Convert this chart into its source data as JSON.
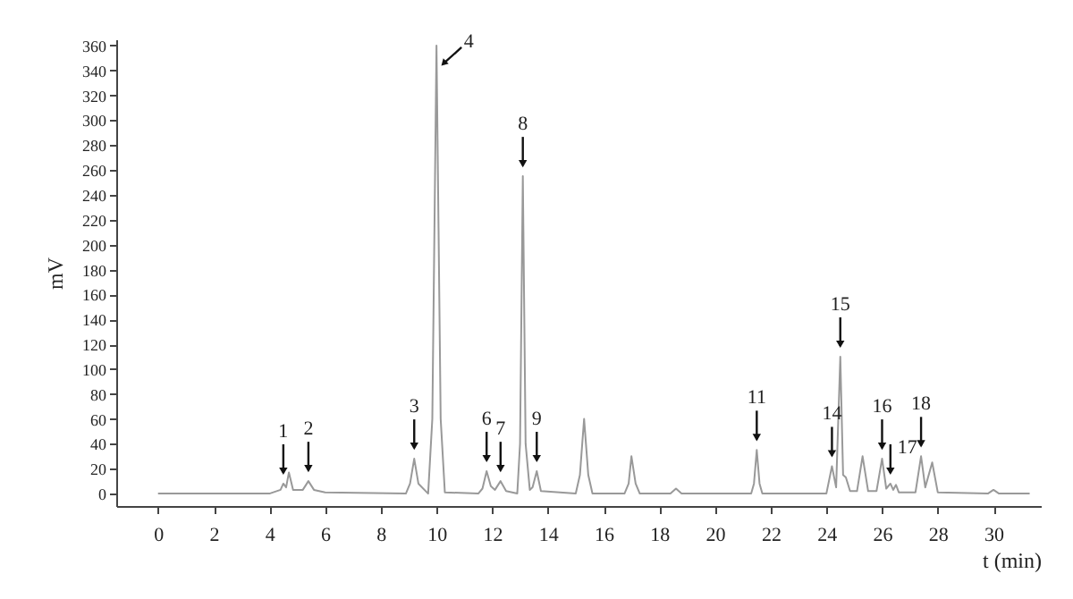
{
  "chart_data": {
    "type": "line",
    "xlabel": "t (min)",
    "ylabel": "mV",
    "x": [
      0,
      4.0,
      4.4,
      4.5,
      4.6,
      4.7,
      4.85,
      5.2,
      5.4,
      5.6,
      6,
      8.9,
      9.05,
      9.2,
      9.35,
      9.7,
      9.85,
      10.0,
      10.15,
      10.3,
      11.5,
      11.65,
      11.8,
      11.95,
      12.1,
      12.3,
      12.5,
      12.9,
      13.0,
      13.1,
      13.2,
      13.35,
      13.45,
      13.6,
      13.75,
      15.0,
      15.15,
      15.3,
      15.45,
      15.6,
      16.75,
      16.9,
      17.0,
      17.15,
      17.3,
      18.4,
      18.6,
      18.8,
      21.3,
      21.4,
      21.5,
      21.6,
      21.7,
      24.0,
      24.2,
      24.35,
      24.5,
      24.6,
      24.7,
      24.85,
      25.1,
      25.3,
      25.5,
      25.8,
      26.0,
      26.15,
      26.3,
      26.4,
      26.5,
      26.6,
      27.2,
      27.4,
      27.55,
      27.8,
      28.0,
      29.8,
      30.0,
      30.2,
      31.3
    ],
    "series": [
      {
        "color": "#999999",
        "values": [
          0,
          0,
          3,
          8,
          5,
          17,
          3,
          3,
          10,
          3,
          1,
          0,
          8,
          28,
          8,
          0,
          60,
          360,
          60,
          1,
          0,
          4,
          18,
          6,
          3,
          10,
          2,
          0,
          40,
          255,
          40,
          3,
          5,
          18,
          2,
          0,
          15,
          60,
          15,
          0,
          0,
          8,
          30,
          8,
          0,
          0,
          4,
          0,
          0,
          8,
          35,
          8,
          0,
          0,
          22,
          5,
          110,
          15,
          13,
          2,
          2,
          30,
          2,
          2,
          28,
          4,
          8,
          3,
          7,
          1,
          1,
          30,
          5,
          25,
          1,
          0,
          3,
          0,
          0
        ]
      }
    ],
    "xlim": [
      -1.5,
      31.7
    ],
    "xticks": [
      0,
      2,
      4,
      6,
      8,
      10,
      12,
      14,
      16,
      18,
      20,
      22,
      24,
      26,
      28,
      30
    ],
    "ylim": [
      -10,
      365
    ],
    "yticks": [
      0,
      20,
      40,
      60,
      80,
      100,
      120,
      140,
      160,
      180,
      200,
      220,
      240,
      260,
      280,
      300,
      320,
      340,
      360
    ],
    "grid": false,
    "marker": "none",
    "line_style": "solid",
    "annotations": [
      {
        "text": "1",
        "x": 4.5,
        "y": 8
      },
      {
        "text": "2",
        "x": 5.4,
        "y": 10
      },
      {
        "text": "3",
        "x": 9.2,
        "y": 28
      },
      {
        "text": "4",
        "x": 10.0,
        "y": 360
      },
      {
        "text": "6",
        "x": 11.8,
        "y": 18
      },
      {
        "text": "7",
        "x": 12.3,
        "y": 10
      },
      {
        "text": "8",
        "x": 13.1,
        "y": 255
      },
      {
        "text": "9",
        "x": 13.6,
        "y": 18
      },
      {
        "text": "11",
        "x": 21.5,
        "y": 35
      },
      {
        "text": "14",
        "x": 24.2,
        "y": 22
      },
      {
        "text": "15",
        "x": 24.5,
        "y": 110
      },
      {
        "text": "16",
        "x": 26.0,
        "y": 28
      },
      {
        "text": "17",
        "x": 26.3,
        "y": 8
      },
      {
        "text": "18",
        "x": 27.4,
        "y": 30
      }
    ]
  }
}
